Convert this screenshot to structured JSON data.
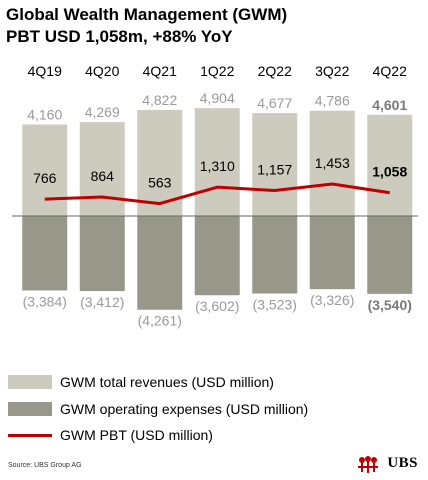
{
  "header": {
    "title": "Global Wealth Management (GWM)",
    "subtitle": "PBT USD 1,058m, +88% YoY"
  },
  "chart_data": {
    "type": "bar",
    "categories": [
      "4Q19",
      "4Q20",
      "4Q21",
      "1Q22",
      "2Q22",
      "3Q22",
      "4Q22"
    ],
    "series": [
      {
        "name": "GWM total revenues (USD million)",
        "values": [
          4160,
          4269,
          4822,
          4904,
          4677,
          4786,
          4601
        ],
        "labels": [
          "4,160",
          "4,269",
          "4,822",
          "4,904",
          "4,677",
          "4,786",
          "4,601"
        ]
      },
      {
        "name": "GWM operating expenses (USD million)",
        "values": [
          -3384,
          -3412,
          -4261,
          -3602,
          -3523,
          -3326,
          -3540
        ],
        "labels": [
          "(3,384)",
          "(3,412)",
          "(4,261)",
          "(3,602)",
          "(3,523)",
          "(3,326)",
          "(3,540)"
        ]
      },
      {
        "name": "GWM PBT (USD million)",
        "type": "line",
        "values": [
          766,
          864,
          563,
          1310,
          1157,
          1453,
          1058
        ],
        "labels": [
          "766",
          "864",
          "563",
          "1,310",
          "1,157",
          "1,453",
          "1,058"
        ]
      }
    ],
    "highlight_category": "4Q22",
    "legend_position": "bottom"
  },
  "colors": {
    "revenue": "#cdcbbd",
    "expenses": "#98988a",
    "pbt": "#c00000",
    "muted_label": "#9a9a9a",
    "highlight_label": "#7a7a7a"
  },
  "footer": {
    "source": "Source: UBS Group AG",
    "logo_text": "UBS",
    "logo_icon": "keys-icon"
  }
}
